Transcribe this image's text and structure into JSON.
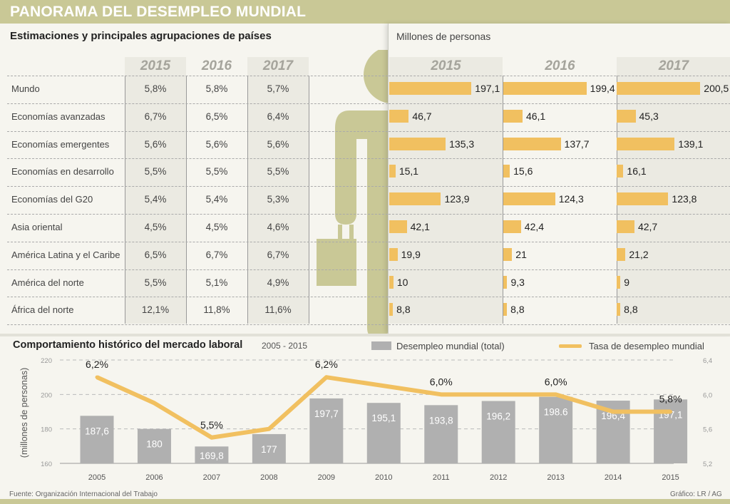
{
  "header": {
    "title": "PANORAMA DEL DESEMPLEO MUNDIAL"
  },
  "table": {
    "subtitle": "Estimaciones y principales agrupaciones de países",
    "units_label": "Millones de personas",
    "years": [
      "2015",
      "2016",
      "2017"
    ],
    "rows": [
      {
        "label": "Mundo",
        "rates": [
          "5,8%",
          "5,8%",
          "5,7%"
        ],
        "millions": [
          197.1,
          199.4,
          200.5
        ],
        "millions_text": [
          "197,1",
          "199,4",
          "200,5"
        ]
      },
      {
        "label": "Economías avanzadas",
        "rates": [
          "6,7%",
          "6,5%",
          "6,4%"
        ],
        "millions": [
          46.7,
          46.1,
          45.3
        ],
        "millions_text": [
          "46,7",
          "46,1",
          "45,3"
        ]
      },
      {
        "label": "Economías emergentes",
        "rates": [
          "5,6%",
          "5,6%",
          "5,6%"
        ],
        "millions": [
          135.3,
          137.7,
          139.1
        ],
        "millions_text": [
          "135,3",
          "137,7",
          "139,1"
        ]
      },
      {
        "label": "Economías en desarrollo",
        "rates": [
          "5,5%",
          "5,5%",
          "5,5%"
        ],
        "millions": [
          15.1,
          15.6,
          16.1
        ],
        "millions_text": [
          "15,1",
          "15,6",
          "16,1"
        ]
      },
      {
        "label": "Economías del G20",
        "rates": [
          "5,4%",
          "5,4%",
          "5,3%"
        ],
        "millions": [
          123.9,
          124.3,
          123.8
        ],
        "millions_text": [
          "123,9",
          "124,3",
          "123,8"
        ]
      },
      {
        "label": "Asia oriental",
        "rates": [
          "4,5%",
          "4,5%",
          "4,6%"
        ],
        "millions": [
          42.1,
          42.4,
          42.7
        ],
        "millions_text": [
          "42,1",
          "42,4",
          "42,7"
        ]
      },
      {
        "label": "América Latina y el Caribe",
        "rates": [
          "6,5%",
          "6,7%",
          "6,7%"
        ],
        "millions": [
          19.9,
          21,
          21.2
        ],
        "millions_text": [
          "19,9",
          "21",
          "21,2"
        ]
      },
      {
        "label": "América del norte",
        "rates": [
          "5,5%",
          "5,1%",
          "4,9%"
        ],
        "millions": [
          10,
          9.3,
          9
        ],
        "millions_text": [
          "10",
          "9,3",
          "9"
        ]
      },
      {
        "label": "África del norte",
        "rates": [
          "12,1%",
          "11,8%",
          "11,6%"
        ],
        "millions": [
          8.8,
          8.8,
          8.8
        ],
        "millions_text": [
          "8,8",
          "8,8",
          "8,8"
        ]
      }
    ]
  },
  "colors": {
    "accent": "#c9c896",
    "bar": "#f1c060",
    "hist_bar": "#b0b0b0",
    "line": "#f1c060"
  },
  "icons": {
    "figure": "person-with-briefcase-icon"
  },
  "chart_data": [
    {
      "type": "bar",
      "title": "Estimaciones y principales agrupaciones de países — Millones de personas",
      "categories": [
        "Mundo",
        "Economías avanzadas",
        "Economías emergentes",
        "Economías en desarrollo",
        "Economías del G20",
        "Asia oriental",
        "América Latina y el Caribe",
        "América del norte",
        "África del norte"
      ],
      "series": [
        {
          "name": "2015",
          "values": [
            197.1,
            46.7,
            135.3,
            15.1,
            123.9,
            42.1,
            19.9,
            10,
            8.8
          ]
        },
        {
          "name": "2016",
          "values": [
            199.4,
            46.1,
            137.7,
            15.6,
            124.3,
            42.4,
            21,
            9.3,
            8.8
          ]
        },
        {
          "name": "2017",
          "values": [
            200.5,
            45.3,
            139.1,
            16.1,
            123.8,
            42.7,
            21.2,
            9,
            8.8
          ]
        }
      ],
      "orientation": "horizontal",
      "xlabel": "Millones de personas"
    },
    {
      "type": "bar",
      "title": "Comportamiento histórico del mercado laboral",
      "subtitle": "2005 - 2015",
      "x": [
        "2005",
        "2006",
        "2007",
        "2008",
        "2009",
        "2010",
        "2011",
        "2012",
        "2013",
        "2014",
        "2015"
      ],
      "series": [
        {
          "name": "Desempleo mundial (total)",
          "kind": "bar",
          "axis": "left",
          "values": [
            187.6,
            180,
            169.8,
            177,
            197.7,
            195.1,
            193.8,
            196.2,
            198.6,
            196.4,
            197.1
          ],
          "labels": [
            "187,6",
            "180",
            "169,8",
            "177",
            "197,7",
            "195,1",
            "193,8",
            "196,2",
            "198.6",
            "196,4",
            "197,1"
          ]
        },
        {
          "name": "Tasa de desempleo mundial",
          "kind": "line",
          "axis": "right",
          "values": [
            6.2,
            5.9,
            5.5,
            5.6,
            6.2,
            6.1,
            6.0,
            6.0,
            6.0,
            5.8,
            5.8
          ],
          "point_labels": {
            "2005": "6,2%",
            "2007": "5,5%",
            "2009": "6,2%",
            "2011": "6,0%",
            "2013": "6,0%",
            "2015": "5,8%"
          }
        }
      ],
      "ylabel": "(millones de personas)",
      "ylim": [
        160,
        220
      ],
      "yticks": [
        "160",
        "180",
        "200",
        "220"
      ],
      "y2lim": [
        5.2,
        6.4
      ],
      "y2ticks": [
        "5,2",
        "5,6",
        "6,0",
        "6,4"
      ],
      "grid": true,
      "legend": "top-right"
    }
  ],
  "history": {
    "title": "Comportamiento histórico del mercado laboral",
    "range": "2005 - 2015",
    "legend_bars": "Desempleo mundial (total)",
    "legend_line": "Tasa de desempleo mundial"
  },
  "footer": {
    "source": "Fuente: Organización Internacional del Trabajo",
    "credit": "Gráfico: LR / AG"
  }
}
